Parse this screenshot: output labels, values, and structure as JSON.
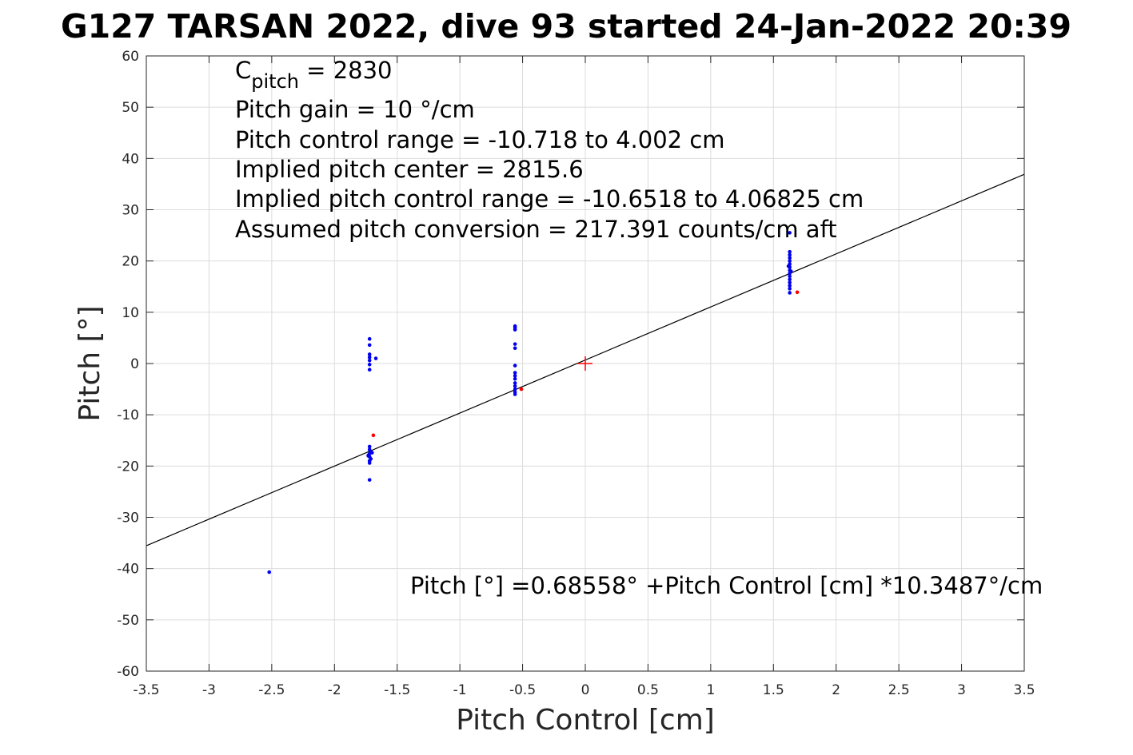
{
  "chart_data": {
    "type": "scatter",
    "title": "G127 TARSAN 2022, dive 93 started 24-Jan-2022 20:39",
    "xlabel": "Pitch Control [cm]",
    "ylabel": "Pitch [°]",
    "xlim": [
      -3.5,
      3.5
    ],
    "ylim": [
      -60,
      60
    ],
    "xticks": [
      -3.5,
      -3,
      -2.5,
      -2,
      -1.5,
      -1,
      -0.5,
      0,
      0.5,
      1,
      1.5,
      2,
      2.5,
      3,
      3.5
    ],
    "xtick_labels": [
      "-3.5",
      "-3",
      "-2.5",
      "-2",
      "-1.5",
      "-1",
      "-0.5",
      "0",
      "0.5",
      "1",
      "1.5",
      "2",
      "2.5",
      "3",
      "3.5"
    ],
    "yticks": [
      60,
      50,
      40,
      30,
      20,
      10,
      0,
      -10,
      -20,
      -30,
      -40,
      -50,
      -60
    ],
    "ytick_labels": [
      "60",
      "50",
      "40",
      "30",
      "20",
      "10",
      "0",
      "-10",
      "-20",
      "-30",
      "-40",
      "-50",
      "-60"
    ],
    "grid": true,
    "annotations": {
      "c_pitch_prefix": "C",
      "c_pitch_sub": "pitch",
      "c_pitch_rest": " = 2830",
      "pitch_gain": "Pitch gain = 10 °/cm",
      "control_range": "Pitch control range = -10.718 to 4.002 cm",
      "implied_center": "Implied pitch center = 2815.6",
      "implied_range": "Implied pitch control range = -10.6518 to 4.06825 cm",
      "conversion": "Assumed pitch conversion = 217.391 counts/cm aft",
      "fit_equation": "Pitch [°] =0.68558° +Pitch Control [cm] *10.3487°/cm"
    },
    "fit_line": {
      "intercept": 0.68558,
      "slope": 10.3487,
      "color": "#000000"
    },
    "center_marker": {
      "x": 0,
      "y": 0,
      "color": "#ff0000"
    },
    "series": [
      {
        "color": "#0000ee",
        "points": [
          [
            -2.52,
            -40.7
          ],
          [
            -1.72,
            4.8
          ],
          [
            -1.72,
            3.6
          ],
          [
            -1.72,
            1.8
          ],
          [
            -1.72,
            1.2
          ],
          [
            -1.72,
            0.6
          ],
          [
            -1.72,
            -0.2
          ],
          [
            -1.72,
            -1.2
          ],
          [
            -1.67,
            1.0
          ],
          [
            -1.72,
            -16.2
          ],
          [
            -1.72,
            -16.8
          ],
          [
            -1.71,
            -17.2
          ],
          [
            -1.72,
            -17.6
          ],
          [
            -1.73,
            -17.9
          ],
          [
            -1.72,
            -18.2
          ],
          [
            -1.71,
            -18.6
          ],
          [
            -1.72,
            -19.0
          ],
          [
            -1.72,
            -19.4
          ],
          [
            -1.73,
            -18.0
          ],
          [
            -1.7,
            -17.4
          ],
          [
            -1.72,
            -22.7
          ],
          [
            -0.56,
            7.3
          ],
          [
            -0.56,
            7.0
          ],
          [
            -0.56,
            6.6
          ],
          [
            -0.56,
            3.8
          ],
          [
            -0.56,
            3.0
          ],
          [
            -0.56,
            -0.4
          ],
          [
            -0.56,
            -1.8
          ],
          [
            -0.56,
            -2.4
          ],
          [
            -0.56,
            -3.0
          ],
          [
            -0.56,
            -3.8
          ],
          [
            -0.56,
            -4.4
          ],
          [
            -0.56,
            -5.0
          ],
          [
            -0.56,
            -5.6
          ],
          [
            -0.56,
            -6.0
          ],
          [
            1.63,
            25.5
          ],
          [
            1.63,
            21.8
          ],
          [
            1.63,
            21.2
          ],
          [
            1.63,
            20.6
          ],
          [
            1.63,
            20.0
          ],
          [
            1.63,
            19.4
          ],
          [
            1.63,
            18.8
          ],
          [
            1.63,
            18.2
          ],
          [
            1.63,
            17.6
          ],
          [
            1.63,
            17.0
          ],
          [
            1.63,
            16.4
          ],
          [
            1.63,
            15.8
          ],
          [
            1.63,
            15.2
          ],
          [
            1.63,
            14.6
          ],
          [
            1.63,
            13.8
          ],
          [
            1.62,
            19.0
          ],
          [
            1.64,
            18.0
          ]
        ]
      },
      {
        "color": "#ff0000",
        "points": [
          [
            -1.69,
            -14.0
          ],
          [
            -0.51,
            -5.0
          ],
          [
            1.69,
            13.9
          ]
        ]
      }
    ]
  }
}
